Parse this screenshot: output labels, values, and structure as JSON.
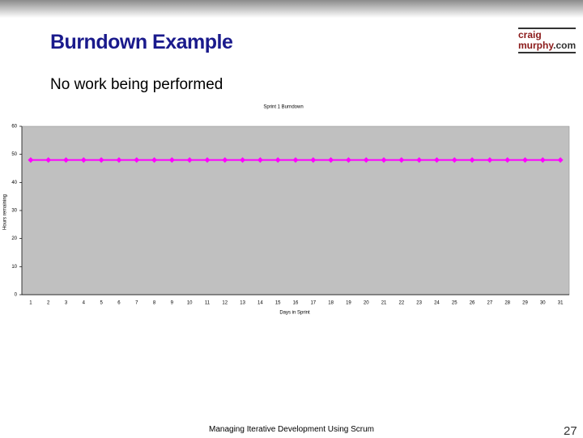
{
  "slide": {
    "title": "Burndown Example",
    "subtitle": "No work being performed",
    "logo": [
      "craig",
      "murphy",
      ".com"
    ],
    "footer": "Managing Iterative Development Using Scrum",
    "page_number": "27"
  },
  "chart_data": {
    "type": "line",
    "title": "Sprint 1 Burndown",
    "x_label": "Days in Sprint",
    "y_label": "Hours remaining",
    "categories": [
      "1",
      "2",
      "3",
      "4",
      "5",
      "6",
      "7",
      "8",
      "9",
      "10",
      "11",
      "12",
      "13",
      "14",
      "15",
      "16",
      "17",
      "18",
      "19",
      "20",
      "21",
      "22",
      "23",
      "24",
      "25",
      "26",
      "27",
      "28",
      "29",
      "30",
      "31"
    ],
    "values": [
      48,
      48,
      48,
      48,
      48,
      48,
      48,
      48,
      48,
      48,
      48,
      48,
      48,
      48,
      48,
      48,
      48,
      48,
      48,
      48,
      48,
      48,
      48,
      48,
      48,
      48,
      48,
      48,
      48,
      48,
      48
    ],
    "color": "#ff00ff",
    "plot_background": "#c0c0c0",
    "ylim": [
      0,
      60
    ],
    "yticks": [
      0,
      10,
      20,
      30,
      40,
      50,
      60
    ],
    "grid": false
  }
}
